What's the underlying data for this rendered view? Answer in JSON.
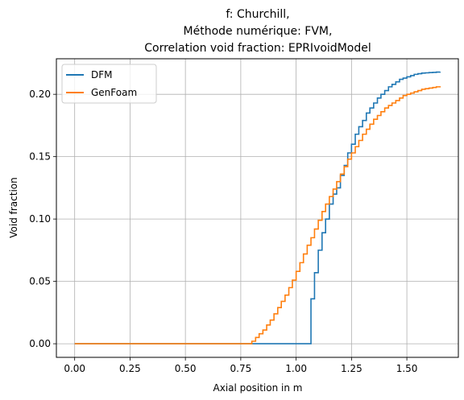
{
  "chart_data": {
    "type": "line",
    "step": true,
    "title_lines": [
      "f: Churchill,",
      "Méthode numérique: FVM,",
      "Correlation void fraction: EPRIvoidModel"
    ],
    "xlabel": "Axial position in m",
    "ylabel": "Void fraction",
    "xlim": [
      -0.0825,
      1.7325
    ],
    "ylim": [
      -0.0109,
      0.2285
    ],
    "xticks": [
      0.0,
      0.25,
      0.5,
      0.75,
      1.0,
      1.25,
      1.5
    ],
    "xtick_labels": [
      "0.00",
      "0.25",
      "0.50",
      "0.75",
      "1.00",
      "1.25",
      "1.50"
    ],
    "yticks": [
      0.0,
      0.05,
      0.1,
      0.15,
      0.2
    ],
    "ytick_labels": [
      "0.00",
      "0.05",
      "0.10",
      "0.15",
      "0.20"
    ],
    "grid": true,
    "legend_position": "top-left",
    "series": [
      {
        "name": "DFM",
        "color": "#1f77b4",
        "x": [
          0.0,
          1.05,
          1.067,
          1.083,
          1.1,
          1.117,
          1.133,
          1.15,
          1.167,
          1.183,
          1.2,
          1.217,
          1.233,
          1.25,
          1.267,
          1.283,
          1.3,
          1.317,
          1.333,
          1.35,
          1.367,
          1.383,
          1.4,
          1.417,
          1.433,
          1.45,
          1.467,
          1.483,
          1.5,
          1.517,
          1.533,
          1.55,
          1.567,
          1.583,
          1.6,
          1.617,
          1.633,
          1.65
        ],
        "y": [
          0.0,
          0.0,
          0.036,
          0.057,
          0.075,
          0.089,
          0.1,
          0.112,
          0.12,
          0.125,
          0.135,
          0.143,
          0.153,
          0.16,
          0.168,
          0.174,
          0.179,
          0.185,
          0.189,
          0.193,
          0.197,
          0.2,
          0.203,
          0.206,
          0.208,
          0.21,
          0.212,
          0.213,
          0.214,
          0.215,
          0.216,
          0.2165,
          0.217,
          0.2172,
          0.2174,
          0.2176,
          0.2178,
          0.218
        ]
      },
      {
        "name": "GenFoam",
        "color": "#ff7f0e",
        "x": [
          0.0,
          0.783,
          0.8,
          0.817,
          0.833,
          0.85,
          0.867,
          0.883,
          0.9,
          0.917,
          0.933,
          0.95,
          0.967,
          0.983,
          1.0,
          1.017,
          1.033,
          1.05,
          1.067,
          1.083,
          1.1,
          1.117,
          1.133,
          1.15,
          1.167,
          1.183,
          1.2,
          1.217,
          1.233,
          1.25,
          1.267,
          1.283,
          1.3,
          1.317,
          1.333,
          1.35,
          1.367,
          1.383,
          1.4,
          1.417,
          1.433,
          1.45,
          1.467,
          1.483,
          1.5,
          1.517,
          1.533,
          1.55,
          1.567,
          1.583,
          1.6,
          1.617,
          1.633,
          1.65
        ],
        "y": [
          0.0,
          0.0,
          0.002,
          0.005,
          0.008,
          0.011,
          0.015,
          0.019,
          0.024,
          0.029,
          0.034,
          0.039,
          0.045,
          0.051,
          0.058,
          0.065,
          0.072,
          0.079,
          0.085,
          0.092,
          0.099,
          0.106,
          0.112,
          0.118,
          0.124,
          0.13,
          0.136,
          0.142,
          0.148,
          0.153,
          0.158,
          0.163,
          0.168,
          0.172,
          0.176,
          0.18,
          0.183,
          0.186,
          0.189,
          0.191,
          0.193,
          0.195,
          0.197,
          0.199,
          0.2,
          0.201,
          0.202,
          0.203,
          0.204,
          0.2045,
          0.205,
          0.2055,
          0.206,
          0.2065
        ]
      }
    ]
  }
}
